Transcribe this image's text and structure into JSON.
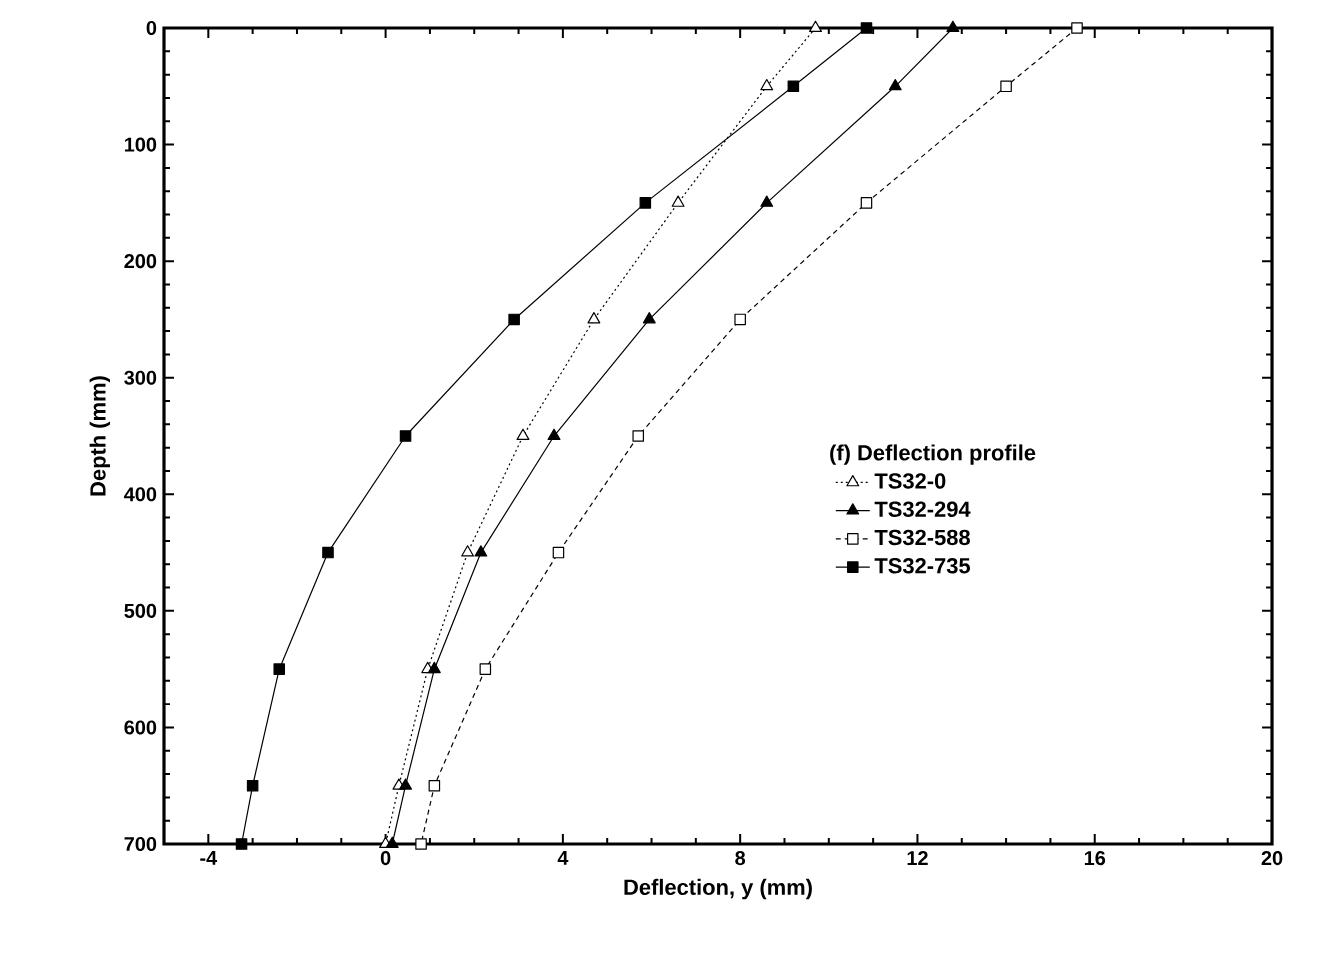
{
  "chart_data": {
    "type": "line",
    "xlabel": "Deflection, y (mm)",
    "ylabel": "Depth (mm)",
    "legend_title": "(f) Deflection profile",
    "legend": "right",
    "grid": false,
    "xlim": [
      -5,
      20
    ],
    "xticks": [
      -4,
      0,
      4,
      8,
      12,
      16,
      20
    ],
    "ylim": [
      700,
      0
    ],
    "yticks": [
      0,
      100,
      200,
      300,
      400,
      500,
      600,
      700
    ],
    "series": [
      {
        "name": "TS32-0",
        "color": "#000000",
        "marker": "triangle",
        "line_style": "dotted",
        "x": [
          9.7,
          8.6,
          6.6,
          4.7,
          3.1,
          1.85,
          0.95,
          0.3,
          0
        ],
        "values": [
          0,
          50,
          150,
          250,
          350,
          450,
          550,
          650,
          700
        ]
      },
      {
        "name": "TS32-294",
        "color": "#000000",
        "marker": "triangle",
        "line_style": "solid",
        "x": [
          12.8,
          11.5,
          8.6,
          5.95,
          3.8,
          2.15,
          1.1,
          0.45,
          0.15
        ],
        "values": [
          0,
          50,
          150,
          250,
          350,
          450,
          550,
          650,
          700
        ]
      },
      {
        "name": "TS32-588",
        "color": "#000000",
        "marker": "square",
        "line_style": "dashed",
        "x": [
          15.6,
          14.0,
          10.85,
          8.0,
          5.7,
          3.9,
          2.25,
          1.1,
          0.8
        ],
        "values": [
          0,
          50,
          150,
          250,
          350,
          450,
          550,
          650,
          700
        ]
      },
      {
        "name": "TS32-735",
        "color": "#000000",
        "marker": "square",
        "line_style": "solid",
        "x": [
          10.85,
          9.2,
          5.86,
          2.9,
          0.45,
          -1.3,
          -2.4,
          -3.0,
          -3.25
        ],
        "values": [
          0,
          50,
          150,
          250,
          350,
          450,
          550,
          650,
          700
        ]
      }
    ]
  }
}
